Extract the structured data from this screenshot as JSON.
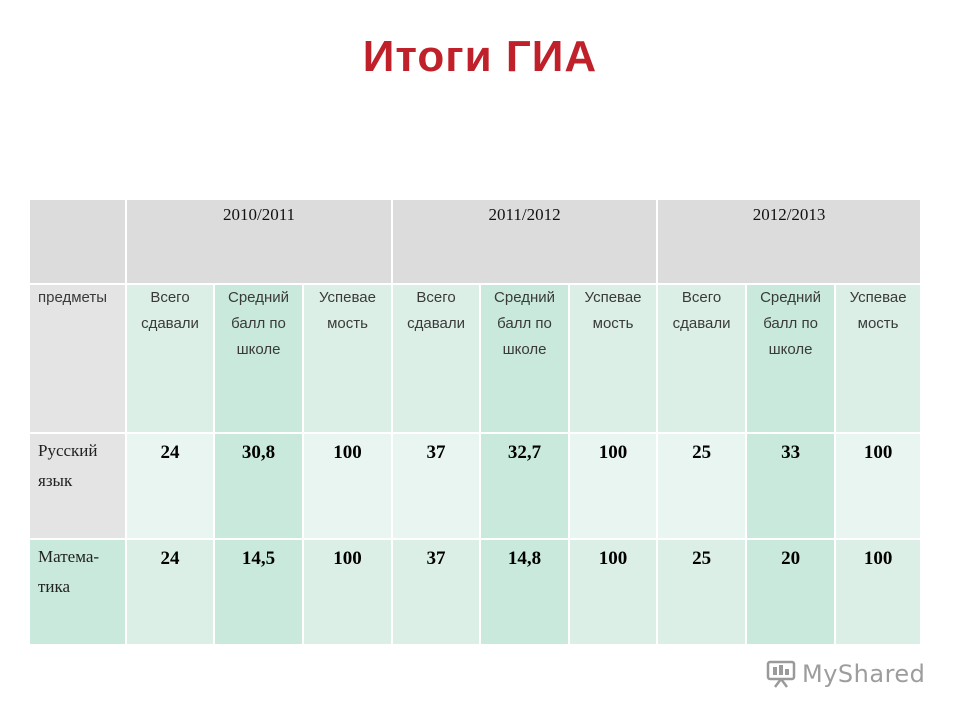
{
  "title": "Итоги ГИА",
  "table": {
    "years": [
      "2010/2011",
      "2011/2012",
      "2012/2013"
    ],
    "subjects_header": "предметы",
    "col_all": "Всего сдавали",
    "col_avg": "Средний балл по школе",
    "col_pass": "Успевае мость",
    "rows": [
      {
        "subject": "Русский язык",
        "values": [
          "24",
          "30,8",
          "100",
          "37",
          "32,7",
          "100",
          "25",
          "33",
          "100"
        ]
      },
      {
        "subject": "Матема- тика",
        "values": [
          "24",
          "14,5",
          "100",
          "37",
          "14,8",
          "100",
          "25",
          "20",
          "100"
        ]
      }
    ]
  },
  "logo": {
    "text": "MyShared",
    "icon": "presentation-screen-icon"
  },
  "colors": {
    "title": "#c0202a",
    "header_bg": "#dcdcdc",
    "green_light": "#dcefe7",
    "green_mid": "#c9e9dc"
  }
}
